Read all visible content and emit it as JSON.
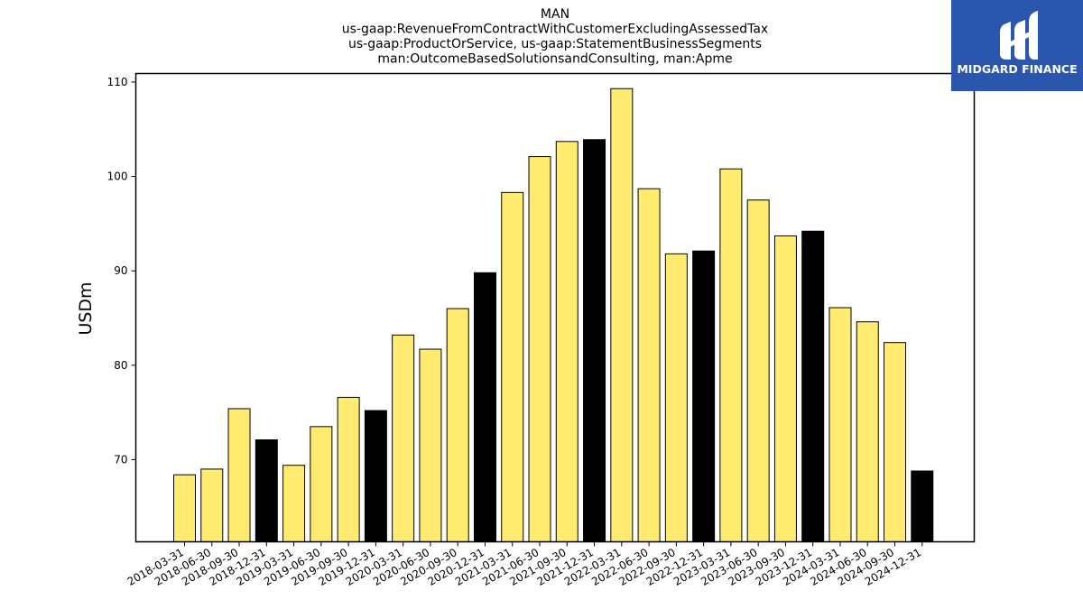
{
  "chart_data": {
    "type": "bar",
    "title_lines": [
      "MAN",
      "us-gaap:RevenueFromContractWithCustomerExcludingAssessedTax",
      "us-gaap:ProductOrService, us-gaap:StatementBusinessSegments",
      "man:OutcomeBasedSolutionsandConsulting, man:Apme"
    ],
    "xlabel": "",
    "ylabel": "USDm",
    "ylim": [
      61.3,
      110.9
    ],
    "yticks": [
      70,
      80,
      90,
      100,
      110
    ],
    "grid": false,
    "categories": [
      "2018-03-31",
      "2018-06-30",
      "2018-09-30",
      "2018-12-31",
      "2019-03-31",
      "2019-06-30",
      "2019-09-30",
      "2019-12-31",
      "2020-03-31",
      "2020-06-30",
      "2020-09-30",
      "2020-12-31",
      "2021-03-31",
      "2021-06-30",
      "2021-09-30",
      "2021-12-31",
      "2022-03-31",
      "2022-06-30",
      "2022-09-30",
      "2022-12-31",
      "2023-03-31",
      "2023-06-30",
      "2023-09-30",
      "2023-12-31",
      "2024-03-31",
      "2024-06-30",
      "2024-09-30",
      "2024-12-31"
    ],
    "values": [
      68.4,
      69.0,
      75.4,
      72.1,
      69.4,
      73.5,
      76.6,
      75.2,
      83.2,
      81.7,
      86.0,
      89.8,
      98.3,
      102.1,
      103.7,
      103.9,
      109.3,
      98.7,
      91.8,
      92.1,
      100.8,
      97.5,
      93.7,
      94.2,
      86.1,
      84.6,
      82.4,
      68.8
    ],
    "colors": {
      "quarter": "#ffeb70",
      "year_end": "#000000",
      "edge": "#000000"
    }
  },
  "logo": {
    "text": "MIDGARD FINANCE",
    "background": "#2b56ad",
    "text_color": "#ffffff",
    "icon": "midgard-m-logo-icon"
  }
}
